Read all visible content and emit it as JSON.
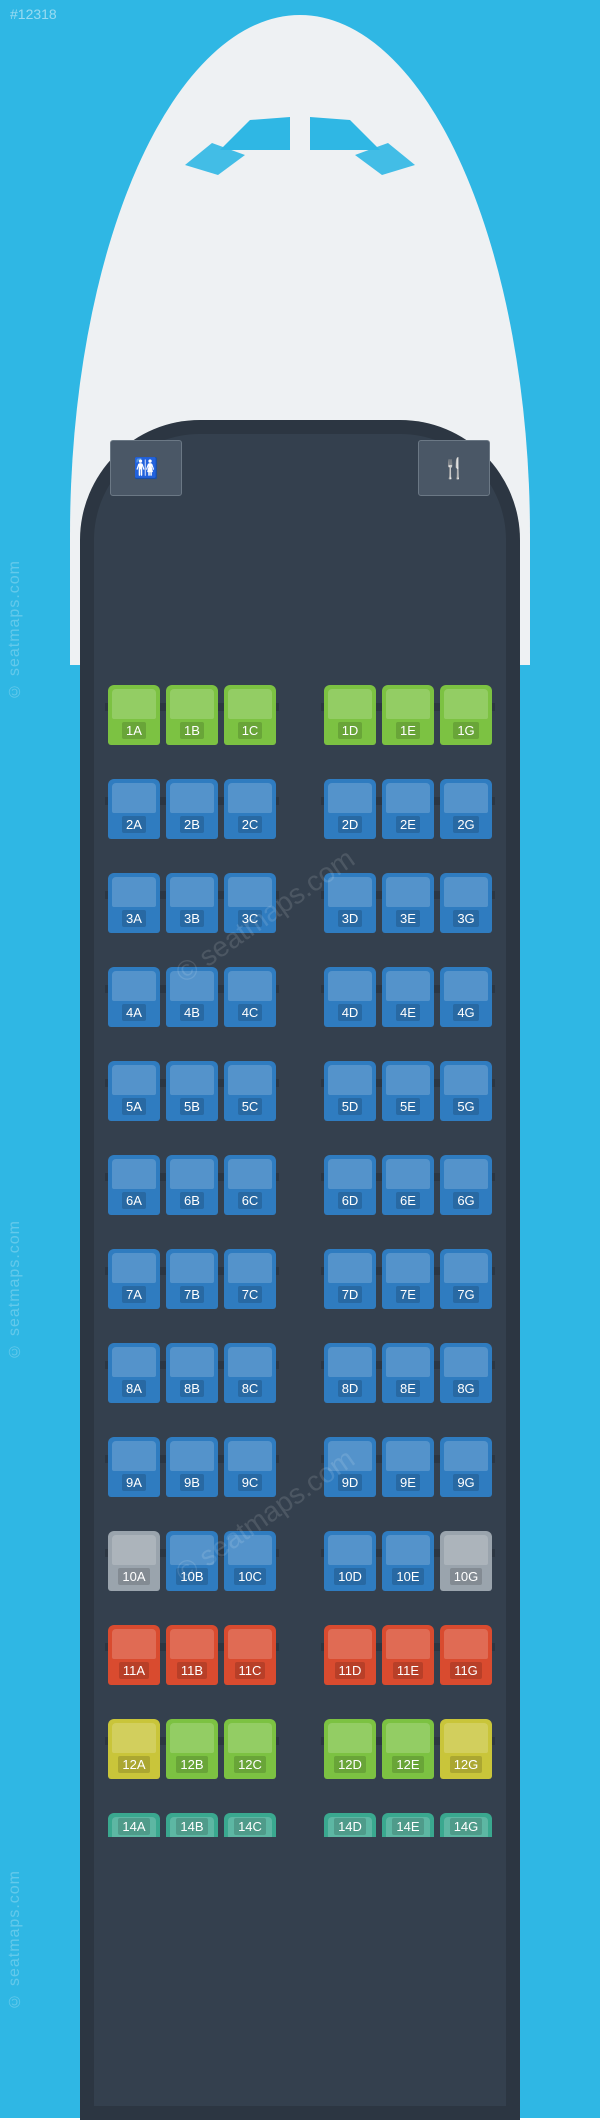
{
  "meta": {
    "watermark_id": "#12318",
    "watermark_text": "© seatmaps.com"
  },
  "colors": {
    "page_bg": "#2fb7e4",
    "fuselage": "#34404e",
    "fuselage_dark": "#2b3540",
    "nose": "#eef1f3",
    "seat_green": "#7cc242",
    "seat_blue": "#2f7cc0",
    "seat_grey": "#9aa4ad",
    "seat_red": "#d94b2f",
    "seat_yellow": "#c9c53a",
    "seat_teal": "#3aa88f",
    "label_text": "#ffffff"
  },
  "layout": {
    "columns_left": [
      "A",
      "B",
      "C"
    ],
    "columns_right": [
      "D",
      "E",
      "G"
    ],
    "aisle_after_index": 3
  },
  "rows": [
    {
      "num": 1,
      "seats": [
        "1A",
        "1B",
        "1C",
        "1D",
        "1E",
        "1G"
      ],
      "color_key": "seat_green"
    },
    {
      "num": 2,
      "seats": [
        "2A",
        "2B",
        "2C",
        "2D",
        "2E",
        "2G"
      ],
      "color_key": "seat_blue"
    },
    {
      "num": 3,
      "seats": [
        "3A",
        "3B",
        "3C",
        "3D",
        "3E",
        "3G"
      ],
      "color_key": "seat_blue"
    },
    {
      "num": 4,
      "seats": [
        "4A",
        "4B",
        "4C",
        "4D",
        "4E",
        "4G"
      ],
      "color_key": "seat_blue"
    },
    {
      "num": 5,
      "seats": [
        "5A",
        "5B",
        "5C",
        "5D",
        "5E",
        "5G"
      ],
      "color_key": "seat_blue"
    },
    {
      "num": 6,
      "seats": [
        "6A",
        "6B",
        "6C",
        "6D",
        "6E",
        "6G"
      ],
      "color_key": "seat_blue"
    },
    {
      "num": 7,
      "seats": [
        "7A",
        "7B",
        "7C",
        "7D",
        "7E",
        "7G"
      ],
      "color_key": "seat_blue"
    },
    {
      "num": 8,
      "seats": [
        "8A",
        "8B",
        "8C",
        "8D",
        "8E",
        "8G"
      ],
      "color_key": "seat_blue"
    },
    {
      "num": 9,
      "seats": [
        "9A",
        "9B",
        "9C",
        "9D",
        "9E",
        "9G"
      ],
      "color_key": "seat_blue"
    },
    {
      "num": 10,
      "seats": [
        "10A",
        "10B",
        "10C",
        "10D",
        "10E",
        "10G"
      ],
      "seat_colors": [
        "seat_grey",
        "seat_blue",
        "seat_blue",
        "seat_blue",
        "seat_blue",
        "seat_grey"
      ]
    },
    {
      "num": 11,
      "seats": [
        "11A",
        "11B",
        "11C",
        "11D",
        "11E",
        "11G"
      ],
      "color_key": "seat_red"
    },
    {
      "num": 12,
      "seats": [
        "12A",
        "12B",
        "12C",
        "12D",
        "12E",
        "12G"
      ],
      "seat_colors": [
        "seat_yellow",
        "seat_green",
        "seat_green",
        "seat_green",
        "seat_green",
        "seat_yellow"
      ]
    },
    {
      "num": 14,
      "seats": [
        "14A",
        "14B",
        "14C",
        "14D",
        "14E",
        "14G"
      ],
      "color_key": "seat_teal",
      "partial": true
    }
  ],
  "service": {
    "lavatory_icon": "🚻",
    "galley_icon": "🍴"
  }
}
